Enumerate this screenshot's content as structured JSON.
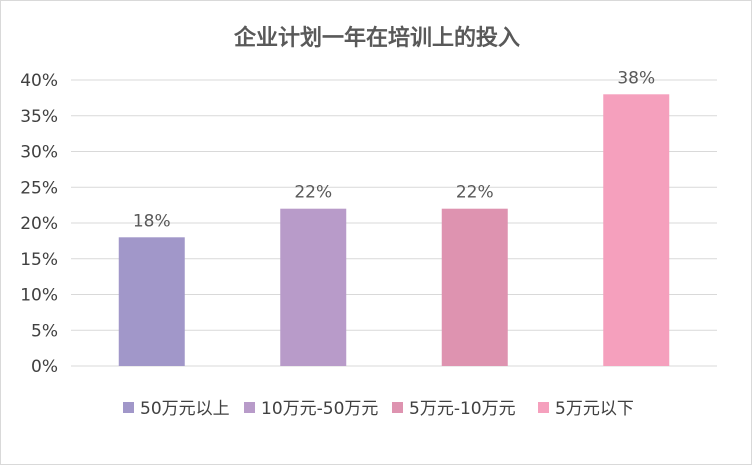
{
  "chart_data": {
    "type": "bar",
    "title": "企业计划一年在培训上的投入",
    "categories": [
      "50万元以上",
      "10万元-50万元",
      "5万元-10万元",
      "5万元以下"
    ],
    "values": [
      18,
      22,
      22,
      38
    ],
    "data_labels": [
      "18%",
      "22%",
      "22%",
      "38%"
    ],
    "colors": [
      "#a197c9",
      "#b89bc9",
      "#de93b0",
      "#f5a0bd"
    ],
    "ylim": [
      0,
      40
    ],
    "yticks": [
      "0%",
      "5%",
      "10%",
      "15%",
      "20%",
      "25%",
      "30%",
      "35%",
      "40%"
    ],
    "grid": true,
    "legend_position": "bottom"
  }
}
